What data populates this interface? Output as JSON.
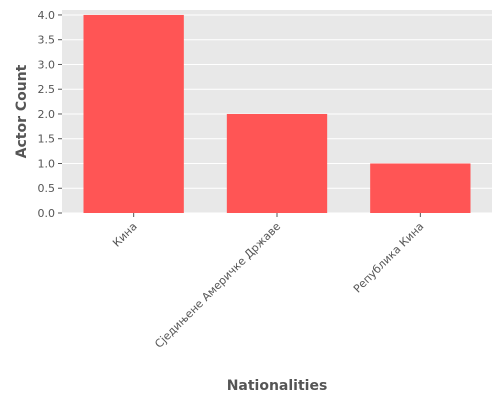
{
  "chart_data": {
    "type": "bar",
    "title": "",
    "xlabel": "Nationalities",
    "ylabel": "Actor Count",
    "categories": [
      "Кина",
      "Сједињене Америчке Државе",
      "Република Кина"
    ],
    "values": [
      4,
      2,
      1
    ],
    "ylim": [
      0,
      4.1
    ],
    "yticks": [
      "0.0",
      "0.5",
      "1.0",
      "1.5",
      "2.0",
      "2.5",
      "3.0",
      "3.5",
      "4.0"
    ],
    "grid": true,
    "bar_color": "#ff5555",
    "panel_color": "#e8e8e8",
    "grid_color": "#ffffff"
  }
}
